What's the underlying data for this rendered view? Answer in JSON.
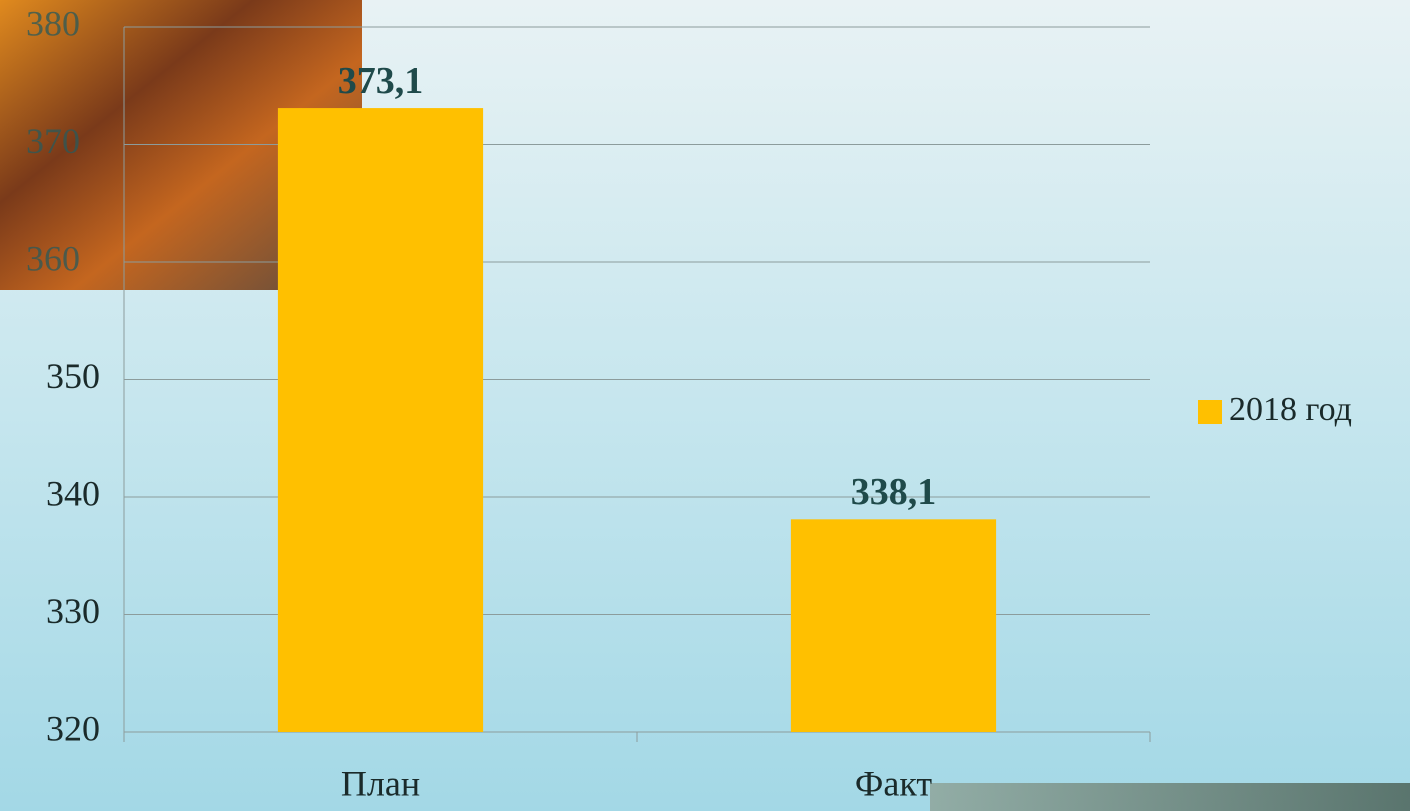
{
  "chart_data": {
    "type": "bar",
    "categories": [
      "План",
      "Факт"
    ],
    "series": [
      {
        "name": "2018 год",
        "color": "#ffc000",
        "values": [
          373.1,
          338.1
        ],
        "value_labels": [
          "373,1",
          "338,1"
        ]
      }
    ],
    "ylim": [
      320,
      380
    ],
    "yticks": [
      320,
      330,
      340,
      350,
      360,
      370,
      380
    ],
    "grid": true,
    "legend": "right"
  }
}
